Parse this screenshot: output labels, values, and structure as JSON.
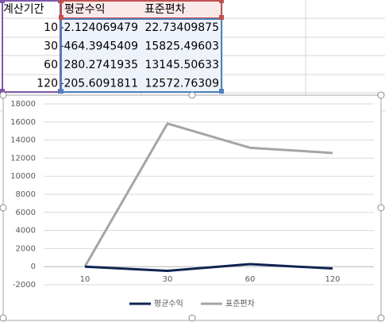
{
  "sheet": {
    "headers": [
      "계산기간",
      "평균수익",
      "표준편차"
    ],
    "rows": [
      [
        10,
        -2.124069479,
        22.73409875
      ],
      [
        30,
        -464.3945409,
        15825.49603
      ],
      [
        60,
        280.2741935,
        13145.50633
      ],
      [
        120,
        -205.6091811,
        12572.76309
      ]
    ]
  },
  "chart_data": {
    "type": "line",
    "categories": [
      "10",
      "30",
      "60",
      "120"
    ],
    "series": [
      {
        "name": "평균수익",
        "color": "#0f2453",
        "values": [
          -2.124069479,
          -464.3945409,
          280.2741935,
          -205.6091811
        ]
      },
      {
        "name": "표준편차",
        "color": "#a5a5a5",
        "values": [
          22.73409875,
          15825.49603,
          13145.50633,
          12572.76309
        ]
      }
    ],
    "ylim": [
      -2000,
      18000
    ],
    "yticks": [
      -2000,
      0,
      2000,
      4000,
      6000,
      8000,
      10000,
      12000,
      14000,
      16000,
      18000
    ],
    "grid": true,
    "legend": "bottom"
  }
}
